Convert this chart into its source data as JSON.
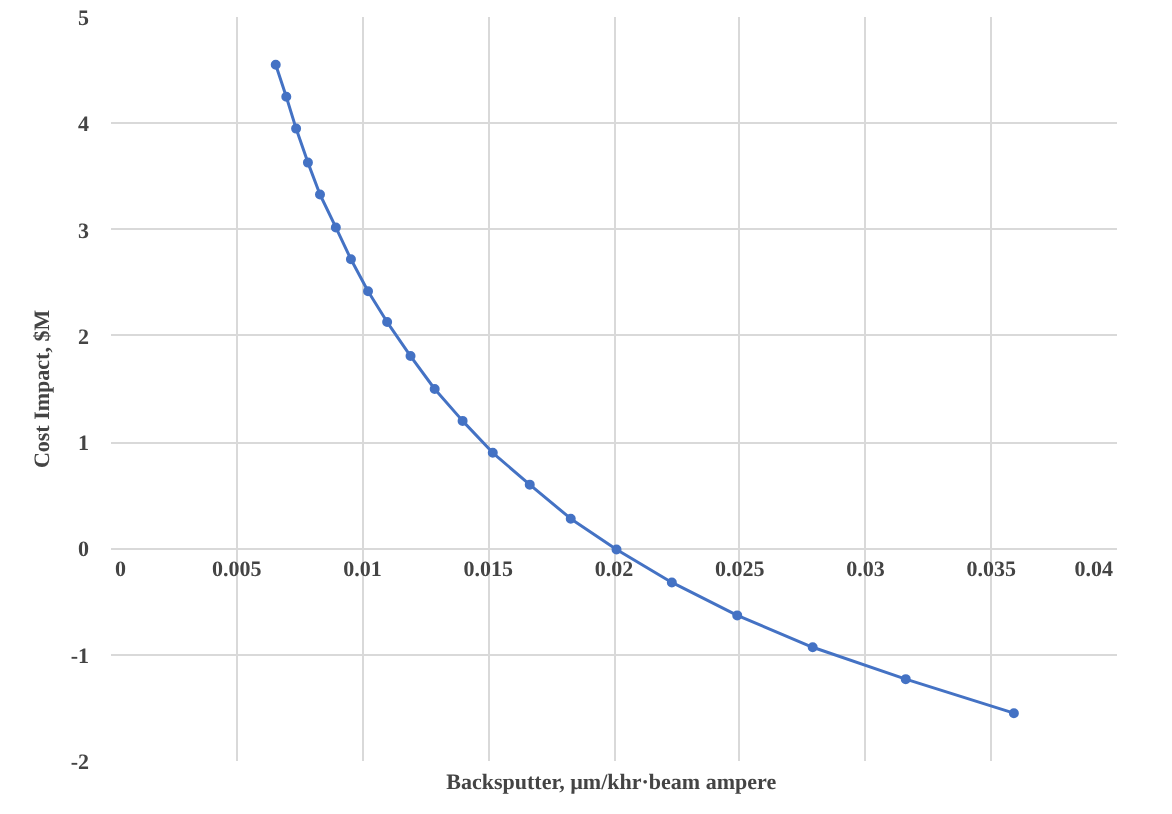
{
  "chart_data": {
    "type": "line",
    "xlabel": "Backsputter, µm/khr·beam  ampere",
    "ylabel": "Cost Impact, $M",
    "x": [
      0.00655,
      0.00697,
      0.00736,
      0.00783,
      0.00831,
      0.00894,
      0.00954,
      0.01022,
      0.01098,
      0.01191,
      0.01287,
      0.01398,
      0.01518,
      0.01665,
      0.01828,
      0.0201,
      0.0223,
      0.0249,
      0.0279,
      0.0316,
      0.0359
    ],
    "series": [
      {
        "color": "#4472c4",
        "values": [
          4.55,
          4.25,
          3.95,
          3.63,
          3.33,
          3.02,
          2.72,
          2.42,
          2.13,
          1.81,
          1.5,
          1.2,
          0.9,
          0.6,
          0.28,
          -0.01,
          -0.32,
          -0.63,
          -0.93,
          -1.23,
          -1.55
        ]
      }
    ],
    "xlim": [
      0,
      0.04
    ],
    "xticks": [
      0,
      0.005,
      0.01,
      0.015,
      0.02,
      0.025,
      0.03,
      0.035,
      0.04
    ],
    "ylim": [
      -2,
      5
    ],
    "yticks": [
      -2,
      -1,
      0,
      1,
      2,
      3,
      4,
      5
    ],
    "grid": true,
    "marker": "circle",
    "line_style": "solid"
  }
}
